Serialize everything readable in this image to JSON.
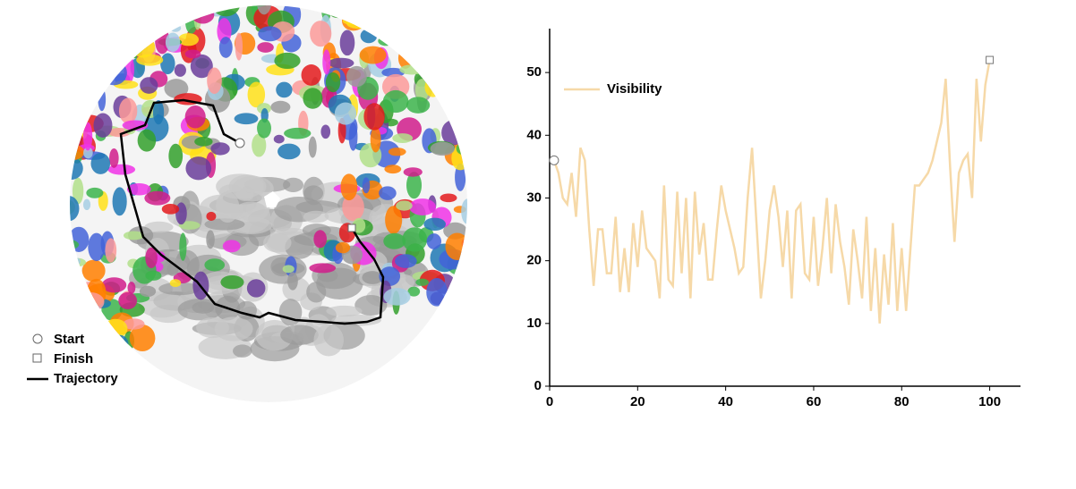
{
  "chart_data": {
    "type": "line",
    "x": [
      1,
      2,
      3,
      4,
      5,
      6,
      7,
      8,
      9,
      10,
      11,
      12,
      13,
      14,
      15,
      16,
      17,
      18,
      19,
      20,
      21,
      22,
      23,
      24,
      25,
      26,
      27,
      28,
      29,
      30,
      31,
      32,
      33,
      34,
      35,
      36,
      37,
      38,
      39,
      40,
      41,
      42,
      43,
      44,
      45,
      46,
      47,
      48,
      49,
      50,
      51,
      52,
      53,
      54,
      55,
      56,
      57,
      58,
      59,
      60,
      61,
      62,
      63,
      64,
      65,
      66,
      67,
      68,
      69,
      70,
      71,
      72,
      73,
      74,
      75,
      76,
      77,
      78,
      79,
      80,
      81,
      82,
      83,
      84,
      85,
      86,
      87,
      88,
      89,
      90,
      91,
      92,
      93,
      94,
      95,
      96,
      97,
      98,
      99,
      100
    ],
    "series": [
      {
        "name": "Visibility",
        "color": "#f6d9a8",
        "values": [
          36,
          34,
          30,
          29,
          34,
          27,
          38,
          36,
          25,
          16,
          25,
          25,
          18,
          18,
          27,
          15,
          22,
          15,
          26,
          19,
          28,
          22,
          21,
          20,
          14,
          32,
          17,
          16,
          31,
          18,
          30,
          14,
          31,
          21,
          26,
          17,
          17,
          25,
          32,
          28,
          25,
          22,
          18,
          19,
          30,
          38,
          26,
          14,
          20,
          28,
          32,
          27,
          19,
          28,
          14,
          28,
          29,
          18,
          17,
          27,
          16,
          22,
          30,
          18,
          29,
          23,
          19,
          13,
          25,
          20,
          14,
          27,
          12,
          22,
          10,
          21,
          13,
          26,
          12,
          22,
          12,
          22,
          32,
          32,
          33,
          34,
          36,
          39,
          42,
          49,
          35,
          23,
          34,
          36,
          37,
          30,
          49,
          39,
          48,
          52
        ]
      }
    ],
    "xlim": [
      0,
      107
    ],
    "ylim": [
      0,
      57
    ],
    "xticks": [
      0,
      20,
      40,
      60,
      80,
      100
    ],
    "yticks": [
      0,
      10,
      20,
      30,
      40,
      50
    ],
    "grid": false,
    "legend": "upper left"
  },
  "map_legend": {
    "start": "Start",
    "finish": "Finish",
    "trajectory": "Trajectory"
  }
}
